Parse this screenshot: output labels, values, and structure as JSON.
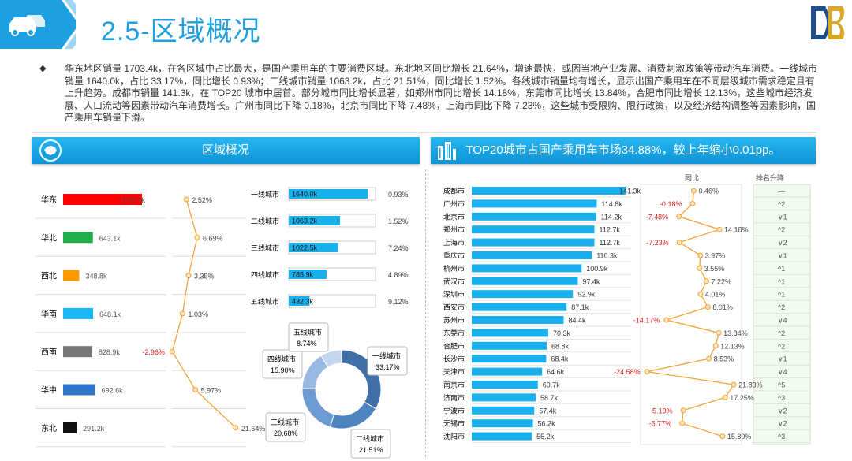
{
  "header": {
    "title": "2.5-区域概况"
  },
  "summary": "华东地区销量 1703.4k，在各区域中占比最大，是国产乘用车的主要消费区域。东北地区同比增长 21.64%，增速最快，或因当地产业发展、消费刺激政策等带动汽车消费。一线城市销量 1640.0k，占比 33.17%，同比增长 0.93%；二线城市销量 1063.2k，占比 21.51%，同比增长 1.52%。各线城市销量均有增长，显示出国产乘用车在不同层级城市需求稳定且有上升趋势。成都市销量 141.3k，在 TOP20 城市中居首。部分城市同比增长显著，如郑州市同比增长 14.18%，东莞市同比增长 13.84%，合肥市同比增长 12.13%，这些城市经济发展、人口流动等因素带动汽车消费增长。广州市同比下降 0.18%，北京市同比下降 7.48%，上海市同比下降 7.23%，这些城市受限购、限行政策，以及经济结构调整等因素影响，国产乘用车销量下滑。",
  "left_banner": {
    "title": "区域概况"
  },
  "right_banner": {
    "title": "TOP20城市占国产乘用车市场34.88%，较上年缩小0.01pp。"
  },
  "chart_data": [
    {
      "type": "bar",
      "categories": [
        "华东",
        "华北",
        "西北",
        "华南",
        "西南",
        "华中",
        "东北"
      ],
      "values": [
        1703.4,
        643.1,
        348.8,
        648.1,
        628.9,
        692.6,
        291.2
      ],
      "value_labels": [
        "1703.4k",
        "643.1k",
        "348.8k",
        "648.1k",
        "628.9k",
        "692.6k",
        "291.2k"
      ],
      "colors": [
        "#ff0000",
        "#1fae4b",
        "#ff9900",
        "#1ab7f0",
        "#777777",
        "#2e75c8",
        "#111111"
      ],
      "yoy": [
        2.52,
        6.69,
        3.35,
        1.03,
        -2.96,
        5.97,
        21.64
      ],
      "yoy_labels": [
        "2.52%",
        "6.69%",
        "3.35%",
        "1.03%",
        "-2.96%",
        "5.97%",
        "21.64%"
      ]
    },
    {
      "type": "bar",
      "categories": [
        "一线城市",
        "二线城市",
        "三线城市",
        "四线城市",
        "五线城市"
      ],
      "values": [
        1640.0,
        1063.2,
        1022.5,
        785.9,
        432.3
      ],
      "value_labels": [
        "1640.0k",
        "1063.2k",
        "1022.5k",
        "785.9k",
        "432.3k"
      ],
      "yoy_labels": [
        "0.93%",
        "1.52%",
        "7.24%",
        "4.89%",
        "9.12%"
      ]
    },
    {
      "type": "pie",
      "labels": [
        "一线城市",
        "二线城市",
        "三线城市",
        "四线城市",
        "五线城市"
      ],
      "values": [
        33.17,
        21.51,
        20.68,
        15.9,
        8.74
      ],
      "value_labels": [
        "33.17%",
        "21.51%",
        "20.68%",
        "15.90%",
        "8.74%"
      ],
      "colors": [
        "#3f6fa6",
        "#4e84c0",
        "#6d9bd2",
        "#98b9e2",
        "#c5d7ee"
      ]
    },
    {
      "type": "bar",
      "categories": [
        "成都市",
        "广州市",
        "北京市",
        "郑州市",
        "上海市",
        "重庆市",
        "杭州市",
        "武汉市",
        "深圳市",
        "西安市",
        "苏州市",
        "东莞市",
        "合肥市",
        "长沙市",
        "天津市",
        "南京市",
        "济南市",
        "宁波市",
        "无锡市",
        "沈阳市"
      ],
      "values": [
        141.3,
        114.8,
        114.2,
        112.7,
        112.7,
        110.3,
        100.9,
        97.4,
        92.9,
        87.1,
        84.4,
        70.3,
        68.8,
        68.4,
        64.6,
        60.7,
        58.7,
        57.4,
        56.2,
        55.2
      ],
      "value_labels": [
        "141.3k",
        "114.8k",
        "114.2k",
        "112.7k",
        "112.7k",
        "110.3k",
        "100.9k",
        "97.4k",
        "92.9k",
        "87.1k",
        "84.4k",
        "70.3k",
        "68.8k",
        "68.4k",
        "64.6k",
        "60.7k",
        "58.7k",
        "57.4k",
        "56.2k",
        "55.2k"
      ],
      "yoy_header": "同比",
      "yoy": [
        0.46,
        -0.18,
        -7.48,
        14.18,
        -7.23,
        3.97,
        3.55,
        7.22,
        4.01,
        8.01,
        -14.17,
        13.84,
        12.13,
        8.53,
        -24.58,
        21.83,
        17.25,
        -5.19,
        -5.77,
        15.8
      ],
      "yoy_labels": [
        "0.46%",
        "-0.18%",
        "-7.48%",
        "14.18%",
        "-7.23%",
        "3.97%",
        "3.55%",
        "7.22%",
        "4.01%",
        "8.01%",
        "-14.17%",
        "13.84%",
        "12.13%",
        "8.53%",
        "-24.58%",
        "21.83%",
        "17.25%",
        "-5.19%",
        "-5.77%",
        "15.80%"
      ],
      "rank_header": "排名升降",
      "rank_change": [
        "—",
        "^2",
        "∨1",
        "^2",
        "∨2",
        "∨1",
        "^1",
        "^1",
        "^1",
        "^2",
        "∨4",
        "^2",
        "^2",
        "∨1",
        "∨4",
        "^5",
        "^3",
        "∨2",
        "∨2",
        "^3"
      ]
    }
  ],
  "colors": {
    "accent": "#1e9fe0",
    "bar": "#1ab0ee",
    "line": "#f5a33a",
    "negative": "#e02020"
  }
}
